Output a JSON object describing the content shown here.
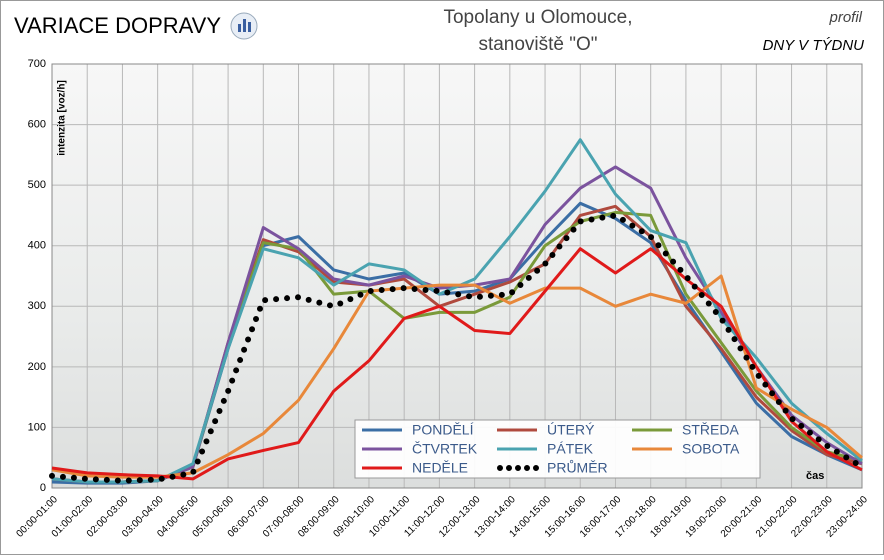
{
  "header": {
    "title": "VARIACE DOPRAVY",
    "location": [
      "Topolany u Olomouce,",
      "stanoviště \"O\""
    ],
    "profile": "profil",
    "subtitle": "DNY V TÝDNU"
  },
  "chart_data": {
    "type": "line",
    "y_label": "intenzita  [voz/h]",
    "x_label": "čas",
    "categories": [
      "00:00-01:00",
      "01:00-02:00",
      "02:00-03:00",
      "03:00-04:00",
      "04:00-05:00",
      "05:00-06:00",
      "06:00-07:00",
      "07:00-08:00",
      "08:00-09:00",
      "09:00-10:00",
      "10:00-11:00",
      "11:00-12:00",
      "12:00-13:00",
      "13:00-14:00",
      "14:00-15:00",
      "15:00-16:00",
      "16:00-17:00",
      "17:00-18:00",
      "18:00-19:00",
      "19:00-20:00",
      "20:00-21:00",
      "21:00-22:00",
      "22:00-23:00",
      "23:00-24:00"
    ],
    "ylim": [
      0,
      700
    ],
    "yticks": [
      0,
      100,
      200,
      300,
      400,
      500,
      600,
      700
    ],
    "grid": true,
    "series": [
      {
        "name": "PONDĚLÍ",
        "color": "#3b6ea5",
        "values": [
          10,
          8,
          8,
          12,
          35,
          230,
          400,
          415,
          360,
          345,
          355,
          320,
          325,
          345,
          410,
          470,
          445,
          405,
          310,
          225,
          140,
          85,
          55,
          30
        ]
      },
      {
        "name": "ÚTERÝ",
        "color": "#b04a3e",
        "values": [
          15,
          10,
          10,
          12,
          35,
          240,
          410,
          390,
          340,
          335,
          345,
          300,
          320,
          340,
          370,
          450,
          465,
          415,
          300,
          230,
          150,
          95,
          55,
          40
        ]
      },
      {
        "name": "STŘEDA",
        "color": "#7a9a3a",
        "values": [
          15,
          10,
          10,
          12,
          35,
          235,
          405,
          395,
          320,
          325,
          280,
          290,
          290,
          315,
          400,
          440,
          455,
          450,
          320,
          240,
          160,
          100,
          60,
          45
        ]
      },
      {
        "name": "ČTVRTEK",
        "color": "#7b539e",
        "values": [
          15,
          10,
          10,
          12,
          35,
          240,
          430,
          395,
          345,
          335,
          350,
          330,
          335,
          345,
          435,
          495,
          530,
          495,
          380,
          290,
          200,
          120,
          75,
          40
        ]
      },
      {
        "name": "PÁTEK",
        "color": "#4aa3b0",
        "values": [
          15,
          10,
          10,
          12,
          40,
          230,
          395,
          380,
          335,
          370,
          360,
          320,
          345,
          415,
          490,
          575,
          485,
          425,
          405,
          280,
          215,
          140,
          90,
          45
        ]
      },
      {
        "name": "SOBOTA",
        "color": "#e8883a",
        "values": [
          30,
          20,
          18,
          18,
          25,
          55,
          90,
          145,
          230,
          325,
          330,
          335,
          335,
          305,
          330,
          330,
          300,
          320,
          305,
          350,
          165,
          130,
          100,
          50
        ]
      },
      {
        "name": "NEDĚLE",
        "color": "#e01a1a",
        "values": [
          33,
          25,
          22,
          20,
          15,
          48,
          62,
          75,
          160,
          210,
          280,
          300,
          260,
          255,
          325,
          395,
          355,
          395,
          345,
          300,
          200,
          110,
          60,
          30
        ]
      },
      {
        "name": "PRŮMĚR",
        "color": "#000000",
        "dotted": true,
        "values": [
          20,
          15,
          12,
          14,
          25,
          160,
          310,
          315,
          300,
          325,
          330,
          325,
          315,
          320,
          370,
          440,
          450,
          415,
          350,
          280,
          190,
          115,
          70,
          35
        ]
      }
    ]
  }
}
